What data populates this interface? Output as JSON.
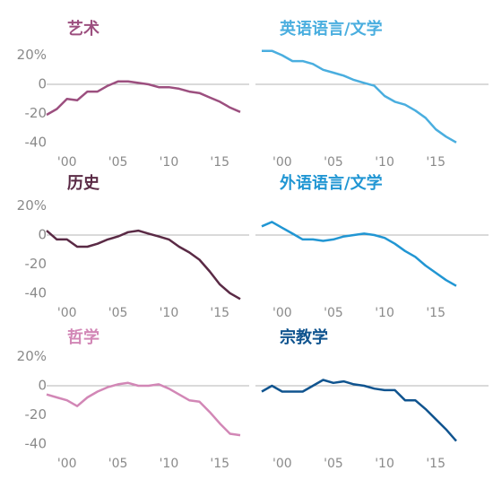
{
  "chart_data": [
    {
      "type": "line",
      "title": "艺术",
      "x": [
        1998,
        1999,
        2000,
        2001,
        2002,
        2003,
        2004,
        2005,
        2006,
        2007,
        2008,
        2009,
        2010,
        2011,
        2012,
        2013,
        2014,
        2015,
        2016,
        2017
      ],
      "series": [
        {
          "color": "#9c4f7f",
          "values": [
            -21,
            -17,
            -10,
            -11,
            -5,
            -5,
            -1,
            2,
            2,
            1,
            0,
            -2,
            -2,
            -3,
            -5,
            -6,
            -9,
            -12,
            -16,
            -19
          ]
        }
      ],
      "ylim": [
        -45,
        25
      ],
      "yticks": [
        {
          "value": 20,
          "label": "20%"
        },
        0,
        -20,
        -40
      ],
      "xlim": [
        1998,
        2017
      ],
      "xticks": [
        {
          "value": 2000,
          "label": "'00"
        },
        {
          "value": 2005,
          "label": "'05"
        },
        {
          "value": 2010,
          "label": "'10"
        },
        {
          "value": 2015,
          "label": "'15"
        }
      ]
    },
    {
      "type": "line",
      "title": "英语语言/文学",
      "x": [
        1998,
        1999,
        2000,
        2001,
        2002,
        2003,
        2004,
        2005,
        2006,
        2007,
        2008,
        2009,
        2010,
        2011,
        2012,
        2013,
        2014,
        2015,
        2016,
        2017
      ],
      "series": [
        {
          "color": "#4aaedf",
          "values": [
            23,
            23,
            20,
            16,
            16,
            14,
            10,
            8,
            6,
            3,
            1,
            -1,
            -8,
            -12,
            -14,
            -18,
            -23,
            -31,
            -36,
            -40
          ]
        }
      ],
      "ylim": [
        -45,
        25
      ],
      "xlim": [
        1998,
        2017
      ],
      "xticks": [
        {
          "value": 2000,
          "label": "'00"
        },
        {
          "value": 2005,
          "label": "'05"
        },
        {
          "value": 2010,
          "label": "'10"
        },
        {
          "value": 2015,
          "label": "'15"
        }
      ]
    },
    {
      "type": "line",
      "title": "历史",
      "x": [
        1998,
        1999,
        2000,
        2001,
        2002,
        2003,
        2004,
        2005,
        2006,
        2007,
        2008,
        2009,
        2010,
        2011,
        2012,
        2013,
        2014,
        2015,
        2016,
        2017
      ],
      "series": [
        {
          "color": "#5a2a45",
          "values": [
            3,
            -3,
            -3,
            -8,
            -8,
            -6,
            -3,
            -1,
            2,
            3,
            1,
            -1,
            -3,
            -8,
            -12,
            -17,
            -25,
            -34,
            -40,
            -44
          ]
        }
      ],
      "ylim": [
        -45,
        25
      ],
      "yticks": [
        {
          "value": 20,
          "label": "20%"
        },
        0,
        -20,
        -40
      ],
      "xlim": [
        1998,
        2017
      ],
      "xticks": [
        {
          "value": 2000,
          "label": "'00"
        },
        {
          "value": 2005,
          "label": "'05"
        },
        {
          "value": 2010,
          "label": "'10"
        },
        {
          "value": 2015,
          "label": "'15"
        }
      ]
    },
    {
      "type": "line",
      "title": "外语语言/文学",
      "x": [
        1998,
        1999,
        2000,
        2001,
        2002,
        2003,
        2004,
        2005,
        2006,
        2007,
        2008,
        2009,
        2010,
        2011,
        2012,
        2013,
        2014,
        2015,
        2016,
        2017
      ],
      "series": [
        {
          "color": "#2196d3",
          "values": [
            6,
            9,
            5,
            1,
            -3,
            -3,
            -4,
            -3,
            -1,
            0,
            1,
            0,
            -2,
            -6,
            -11,
            -15,
            -21,
            -26,
            -31,
            -35
          ]
        }
      ],
      "ylim": [
        -45,
        25
      ],
      "xlim": [
        1998,
        2017
      ],
      "xticks": [
        {
          "value": 2000,
          "label": "'00"
        },
        {
          "value": 2005,
          "label": "'05"
        },
        {
          "value": 2010,
          "label": "'10"
        },
        {
          "value": 2015,
          "label": "'15"
        }
      ]
    },
    {
      "type": "line",
      "title": "哲学",
      "x": [
        1998,
        1999,
        2000,
        2001,
        2002,
        2003,
        2004,
        2005,
        2006,
        2007,
        2008,
        2009,
        2010,
        2011,
        2012,
        2013,
        2014,
        2015,
        2016,
        2017
      ],
      "series": [
        {
          "color": "#d287b6",
          "values": [
            -6,
            -8,
            -10,
            -14,
            -8,
            -4,
            -1,
            1,
            2,
            0,
            0,
            1,
            -2,
            -6,
            -10,
            -11,
            -18,
            -26,
            -33,
            -34
          ]
        }
      ],
      "ylim": [
        -45,
        25
      ],
      "yticks": [
        {
          "value": 20,
          "label": "20%"
        },
        0,
        -20,
        -40
      ],
      "xlim": [
        1998,
        2017
      ],
      "xticks": [
        {
          "value": 2000,
          "label": "'00"
        },
        {
          "value": 2005,
          "label": "'05"
        },
        {
          "value": 2010,
          "label": "'10"
        },
        {
          "value": 2015,
          "label": "'15"
        }
      ]
    },
    {
      "type": "line",
      "title": "宗教学",
      "x": [
        1998,
        1999,
        2000,
        2001,
        2002,
        2003,
        2004,
        2005,
        2006,
        2007,
        2008,
        2009,
        2010,
        2011,
        2012,
        2013,
        2014,
        2015,
        2016,
        2017
      ],
      "series": [
        {
          "color": "#10548f",
          "values": [
            -4,
            0,
            -4,
            -4,
            -4,
            0,
            4,
            2,
            3,
            1,
            0,
            -2,
            -3,
            -3,
            -10,
            -10,
            -16,
            -23,
            -30,
            -38
          ]
        }
      ],
      "ylim": [
        -45,
        25
      ],
      "xlim": [
        1998,
        2017
      ],
      "xticks": [
        {
          "value": 2000,
          "label": "'00"
        },
        {
          "value": 2005,
          "label": "'05"
        },
        {
          "value": 2010,
          "label": "'10"
        },
        {
          "value": 2015,
          "label": "'15"
        }
      ]
    }
  ]
}
